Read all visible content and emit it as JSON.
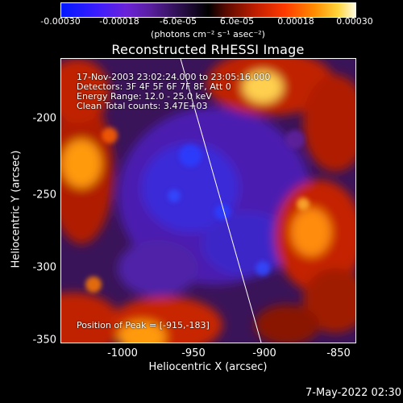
{
  "colorbar": {
    "ticks": [
      "-0.00030",
      "-0.00018",
      "-6.0e-05",
      "6.0e-05",
      "0.00018",
      "0.00030"
    ],
    "units": "(photons cm⁻² s⁻¹ asec⁻²)"
  },
  "title": "Reconstructed RHESSI Image",
  "info": {
    "time": "17-Nov-2003 23:02:24.000 to 23:05:16.000",
    "detectors": "Detectors: 3F 4F 5F 6F 7F 8F, Att 0",
    "energy": "Energy Range: 12.0 - 25.0 keV",
    "clean": "Clean    Total counts: 3.47E+03",
    "peak": "Position of Peak = [-915,-183]"
  },
  "axes": {
    "xlabel": "Heliocentric X (arcsec)",
    "ylabel": "Heliocentric Y (arcsec)",
    "xticks": [
      "-1000",
      "-950",
      "-900",
      "-850"
    ],
    "yticks": [
      "-200",
      "-250",
      "-300",
      "-350"
    ]
  },
  "datestamp": "7-May-2022 02:30",
  "colors": {
    "background": "#000000",
    "text": "#ffffff"
  }
}
